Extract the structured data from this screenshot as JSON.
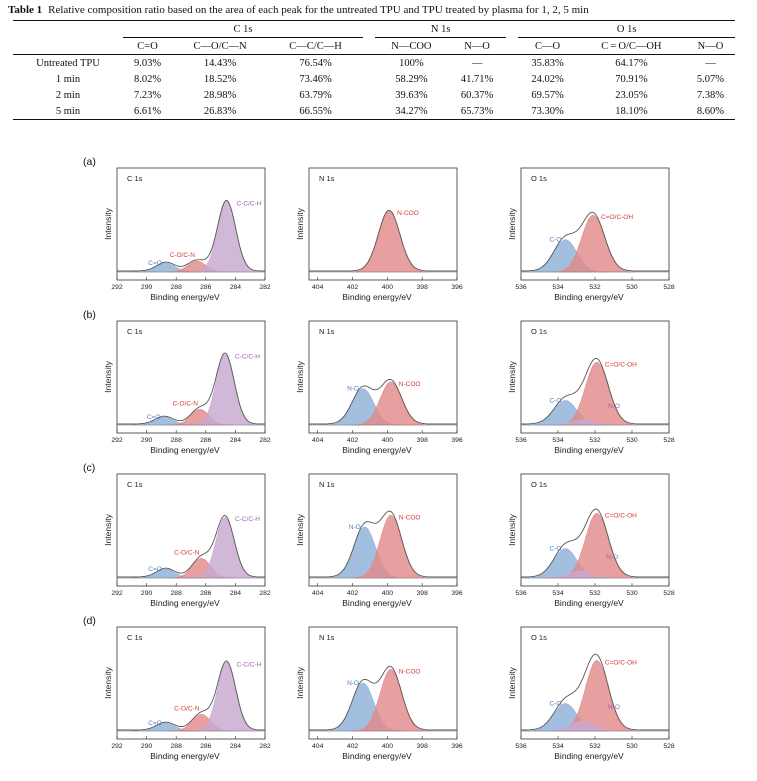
{
  "table": {
    "label": "Table 1",
    "caption": "Relative composition ratio based on the area of each peak for the untreated TPU and TPU treated by plasma for 1, 2, 5 min",
    "groups": [
      "C 1s",
      "N 1s",
      "O 1s"
    ],
    "subheaders": [
      "C=O",
      "C—O/C—N",
      "C—C/C—H",
      "N—COO",
      "N—O",
      "C—O",
      "C = O/C—OH",
      "N—O"
    ],
    "rows": [
      {
        "label": "Untreated TPU",
        "cells": [
          "9.03%",
          "14.43%",
          "76.54%",
          "100%",
          "—",
          "35.83%",
          "64.17%",
          "—"
        ]
      },
      {
        "label": "1 min",
        "cells": [
          "8.02%",
          "18.52%",
          "73.46%",
          "58.29%",
          "41.71%",
          "24.02%",
          "70.91%",
          "5.07%"
        ]
      },
      {
        "label": "2 min",
        "cells": [
          "7.23%",
          "28.98%",
          "63.79%",
          "39.63%",
          "60.37%",
          "69.57%",
          "23.05%",
          "7.38%"
        ]
      },
      {
        "label": "5 min",
        "cells": [
          "6.61%",
          "26.83%",
          "66.55%",
          "34.27%",
          "65.73%",
          "73.30%",
          "18.10%",
          "8.60%"
        ]
      }
    ]
  },
  "colors": {
    "blue": "#8fb1d8",
    "red": "#e28a8a",
    "purple": "#c7a8d1",
    "blueLabel": "#4f7fc0",
    "redLabel": "#d43c3c",
    "purpleLabel": "#9a63b0"
  },
  "chart_data": [
    {
      "panel": "(a)",
      "type": "area",
      "title": "C 1s",
      "xlabel": "Binding energy/eV",
      "ylabel": "Intensity",
      "xlim": [
        292,
        282
      ],
      "xticks": [
        "292",
        "290",
        "288",
        "286",
        "284",
        "282"
      ],
      "peaks": [
        {
          "name": "C=O",
          "center": 288.7,
          "height": 0.09,
          "color": "blue"
        },
        {
          "name": "C-O/C-N",
          "center": 286.6,
          "height": 0.11,
          "color": "red"
        },
        {
          "name": "C-C/C-H",
          "center": 284.6,
          "height": 0.72,
          "color": "purple"
        }
      ]
    },
    {
      "panel": "(a)",
      "type": "area",
      "title": "N 1s",
      "xlabel": "Binding energy/eV",
      "ylabel": "Intensity",
      "xlim": [
        404.5,
        396
      ],
      "xticks": [
        "404",
        "402",
        "400",
        "398",
        "396"
      ],
      "peaks": [
        {
          "name": "N-COO",
          "center": 399.9,
          "height": 0.62,
          "color": "red"
        }
      ]
    },
    {
      "panel": "(a)",
      "type": "area",
      "title": "O 1s",
      "xlabel": "Binding energy/eV",
      "ylabel": "Intensity",
      "xlim": [
        536,
        528
      ],
      "xticks": [
        "536",
        "534",
        "532",
        "530",
        "528"
      ],
      "peaks": [
        {
          "name": "C-O",
          "center": 533.6,
          "height": 0.33,
          "color": "blue"
        },
        {
          "name": "C=O/C-OH",
          "center": 532.1,
          "height": 0.58,
          "color": "red"
        }
      ]
    },
    {
      "panel": "(b)",
      "type": "area",
      "title": "C 1s",
      "xlabel": "Binding energy/eV",
      "ylabel": "Intensity",
      "xlim": [
        292,
        282
      ],
      "xticks": [
        "292",
        "290",
        "288",
        "286",
        "284",
        "282"
      ],
      "peaks": [
        {
          "name": "C=O",
          "center": 288.8,
          "height": 0.08,
          "color": "blue"
        },
        {
          "name": "C-O/C-N",
          "center": 286.4,
          "height": 0.16,
          "color": "red"
        },
        {
          "name": "C-C/C-H",
          "center": 284.7,
          "height": 0.72,
          "color": "purple"
        }
      ]
    },
    {
      "panel": "(b)",
      "type": "area",
      "title": "N 1s",
      "xlabel": "Binding energy/eV",
      "ylabel": "Intensity",
      "xlim": [
        404.5,
        396
      ],
      "xticks": [
        "404",
        "402",
        "400",
        "398",
        "396"
      ],
      "peaks": [
        {
          "name": "N-O",
          "center": 401.4,
          "height": 0.37,
          "color": "blue"
        },
        {
          "name": "N-COO",
          "center": 399.8,
          "height": 0.44,
          "color": "red"
        }
      ]
    },
    {
      "panel": "(b)",
      "type": "area",
      "title": "O 1s",
      "xlabel": "Binding energy/eV",
      "ylabel": "Intensity",
      "xlim": [
        536,
        528
      ],
      "xticks": [
        "536",
        "534",
        "532",
        "530",
        "528"
      ],
      "peaks": [
        {
          "name": "C-O",
          "center": 533.6,
          "height": 0.25,
          "color": "blue"
        },
        {
          "name": "C=O/C-OH",
          "center": 531.9,
          "height": 0.64,
          "color": "red"
        },
        {
          "name": "N-O",
          "center": 532.7,
          "height": 0.05,
          "color": "purple"
        }
      ]
    },
    {
      "panel": "(c)",
      "type": "area",
      "title": "C 1s",
      "xlabel": "Binding energy/eV",
      "ylabel": "Intensity",
      "xlim": [
        292,
        282
      ],
      "xticks": [
        "292",
        "290",
        "288",
        "286",
        "284",
        "282"
      ],
      "peaks": [
        {
          "name": "C=O",
          "center": 288.7,
          "height": 0.09,
          "color": "blue"
        },
        {
          "name": "C-O/C-N",
          "center": 286.3,
          "height": 0.2,
          "color": "red"
        },
        {
          "name": "C-C/C-H",
          "center": 284.7,
          "height": 0.62,
          "color": "purple"
        }
      ]
    },
    {
      "panel": "(c)",
      "type": "area",
      "title": "N 1s",
      "xlabel": "Binding energy/eV",
      "ylabel": "Intensity",
      "xlim": [
        404.5,
        396
      ],
      "xticks": [
        "404",
        "402",
        "400",
        "398",
        "396"
      ],
      "peaks": [
        {
          "name": "N-O",
          "center": 401.3,
          "height": 0.52,
          "color": "blue"
        },
        {
          "name": "N-COO",
          "center": 399.8,
          "height": 0.64,
          "color": "red"
        }
      ]
    },
    {
      "panel": "(c)",
      "type": "area",
      "title": "O 1s",
      "xlabel": "Binding energy/eV",
      "ylabel": "Intensity",
      "xlim": [
        536,
        528
      ],
      "xticks": [
        "536",
        "534",
        "532",
        "530",
        "528"
      ],
      "peaks": [
        {
          "name": "C-O",
          "center": 533.6,
          "height": 0.3,
          "color": "blue"
        },
        {
          "name": "C=O/C-OH",
          "center": 531.9,
          "height": 0.66,
          "color": "red"
        },
        {
          "name": "N-O",
          "center": 532.8,
          "height": 0.07,
          "color": "purple"
        }
      ]
    },
    {
      "panel": "(d)",
      "type": "area",
      "title": "C 1s",
      "xlabel": "Binding energy/eV",
      "ylabel": "Intensity",
      "xlim": [
        292,
        282
      ],
      "xticks": [
        "292",
        "290",
        "288",
        "286",
        "284",
        "282"
      ],
      "peaks": [
        {
          "name": "C=O",
          "center": 288.7,
          "height": 0.08,
          "color": "blue"
        },
        {
          "name": "C-O/C-N",
          "center": 286.3,
          "height": 0.17,
          "color": "red"
        },
        {
          "name": "C-C/C-H",
          "center": 284.6,
          "height": 0.7,
          "color": "purple"
        }
      ]
    },
    {
      "panel": "(d)",
      "type": "area",
      "title": "N 1s",
      "xlabel": "Binding energy/eV",
      "ylabel": "Intensity",
      "xlim": [
        404.5,
        396
      ],
      "xticks": [
        "404",
        "402",
        "400",
        "398",
        "396"
      ],
      "peaks": [
        {
          "name": "N-O",
          "center": 401.4,
          "height": 0.49,
          "color": "blue"
        },
        {
          "name": "N-COO",
          "center": 399.8,
          "height": 0.63,
          "color": "red"
        }
      ]
    },
    {
      "panel": "(d)",
      "type": "area",
      "title": "O 1s",
      "xlabel": "Binding energy/eV",
      "ylabel": "Intensity",
      "xlim": [
        536,
        528
      ],
      "xticks": [
        "536",
        "534",
        "532",
        "530",
        "528"
      ],
      "peaks": [
        {
          "name": "C-O",
          "center": 533.6,
          "height": 0.28,
          "color": "blue"
        },
        {
          "name": "C=O/C-OH",
          "center": 531.9,
          "height": 0.72,
          "color": "red"
        },
        {
          "name": "N-O",
          "center": 532.7,
          "height": 0.1,
          "color": "purple"
        }
      ]
    }
  ]
}
